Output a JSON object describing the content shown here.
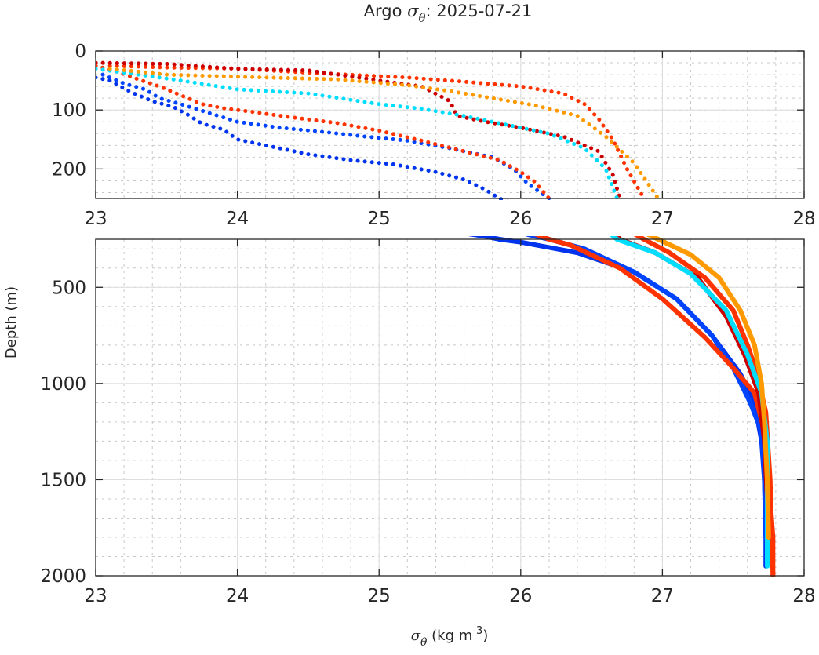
{
  "chart_data": {
    "type": "scatter",
    "title_prefix": "Argo ",
    "title_symbol": "σ",
    "title_subscript": "θ",
    "title_suffix": ": 2025-07-21",
    "xlabel_symbol": "σ",
    "xlabel_subscript": "θ",
    "xlabel_text": " (kg m",
    "xlabel_sup": "-3",
    "xlabel_close": ")",
    "ylabel": "Depth (m)",
    "xlim": [
      23,
      28
    ],
    "grid": true,
    "panels": [
      {
        "name": "upper",
        "ylim": [
          0,
          250
        ],
        "yticks": [
          "0",
          "100",
          "200"
        ],
        "ytick_values": [
          0,
          100,
          200
        ],
        "xticks": [
          "23",
          "24",
          "25",
          "26",
          "27",
          "28"
        ],
        "xtick_values": [
          23,
          24,
          25,
          26,
          27,
          28
        ]
      },
      {
        "name": "lower",
        "ylim": [
          250,
          2000
        ],
        "yticks": [
          "500",
          "1000",
          "1500",
          "2000"
        ],
        "ytick_values": [
          500,
          1000,
          1500,
          2000
        ],
        "xticks": [
          "23",
          "24",
          "25",
          "26",
          "27",
          "28"
        ],
        "xtick_values": [
          23,
          24,
          25,
          26,
          27,
          28
        ]
      }
    ],
    "series": [
      {
        "name": "profile-blue-1",
        "color": "#0033ee",
        "points": [
          [
            23.0,
            45
          ],
          [
            23.1,
            50
          ],
          [
            23.25,
            70
          ],
          [
            23.4,
            85
          ],
          [
            23.55,
            95
          ],
          [
            23.65,
            108
          ],
          [
            23.75,
            123
          ],
          [
            23.9,
            133
          ],
          [
            24.0,
            150
          ],
          [
            24.2,
            160
          ],
          [
            24.5,
            175
          ],
          [
            24.8,
            185
          ],
          [
            25.1,
            192
          ],
          [
            25.4,
            205
          ],
          [
            25.6,
            218
          ],
          [
            25.75,
            235
          ],
          [
            25.85,
            250
          ],
          [
            26.0,
            265
          ],
          [
            26.4,
            320
          ],
          [
            26.8,
            420
          ],
          [
            27.1,
            560
          ],
          [
            27.35,
            750
          ],
          [
            27.55,
            950
          ],
          [
            27.65,
            1100
          ],
          [
            27.7,
            1300
          ],
          [
            27.72,
            1500
          ],
          [
            27.73,
            1800
          ],
          [
            27.73,
            1950
          ]
        ]
      },
      {
        "name": "profile-blue-2",
        "color": "#0044ff",
        "points": [
          [
            23.05,
            40
          ],
          [
            23.2,
            55
          ],
          [
            23.35,
            65
          ],
          [
            23.45,
            80
          ],
          [
            23.6,
            90
          ],
          [
            23.8,
            105
          ],
          [
            24.0,
            120
          ],
          [
            24.3,
            130
          ],
          [
            24.6,
            137
          ],
          [
            24.9,
            145
          ],
          [
            25.2,
            152
          ],
          [
            25.5,
            165
          ],
          [
            25.8,
            180
          ],
          [
            25.95,
            200
          ],
          [
            26.05,
            225
          ],
          [
            26.2,
            250
          ],
          [
            26.45,
            300
          ],
          [
            26.8,
            420
          ],
          [
            27.1,
            560
          ],
          [
            27.35,
            750
          ],
          [
            27.5,
            920
          ],
          [
            27.62,
            1100
          ],
          [
            27.7,
            1250
          ],
          [
            27.72,
            1500
          ],
          [
            27.73,
            1800
          ]
        ]
      },
      {
        "name": "profile-red-orange-1",
        "color": "#ff3300",
        "points": [
          [
            23.0,
            25
          ],
          [
            23.15,
            35
          ],
          [
            23.3,
            48
          ],
          [
            23.45,
            60
          ],
          [
            23.6,
            75
          ],
          [
            23.75,
            90
          ],
          [
            23.9,
            97
          ],
          [
            24.1,
            103
          ],
          [
            24.4,
            113
          ],
          [
            24.7,
            122
          ],
          [
            25.0,
            135
          ],
          [
            25.3,
            152
          ],
          [
            25.6,
            170
          ],
          [
            25.85,
            185
          ],
          [
            26.0,
            205
          ],
          [
            26.1,
            222
          ],
          [
            26.2,
            250
          ],
          [
            26.35,
            280
          ],
          [
            26.7,
            400
          ],
          [
            27.0,
            560
          ],
          [
            27.3,
            760
          ],
          [
            27.5,
            920
          ],
          [
            27.65,
            1050
          ],
          [
            27.72,
            1250
          ],
          [
            27.75,
            1500
          ],
          [
            27.78,
            1800
          ],
          [
            27.78,
            2000
          ]
        ]
      },
      {
        "name": "profile-red-orange-2",
        "color": "#ff3300",
        "points": [
          [
            23.1,
            25
          ],
          [
            23.5,
            28
          ],
          [
            24.0,
            30
          ],
          [
            24.6,
            38
          ],
          [
            25.2,
            45
          ],
          [
            25.6,
            52
          ],
          [
            26.0,
            60
          ],
          [
            26.3,
            72
          ],
          [
            26.45,
            90
          ],
          [
            26.55,
            115
          ],
          [
            26.65,
            150
          ],
          [
            26.75,
            200
          ],
          [
            26.87,
            250
          ],
          [
            27.05,
            320
          ],
          [
            27.3,
            450
          ],
          [
            27.5,
            620
          ],
          [
            27.6,
            800
          ],
          [
            27.67,
            950
          ],
          [
            27.73,
            1150
          ],
          [
            27.76,
            1500
          ],
          [
            27.78,
            2000
          ]
        ]
      },
      {
        "name": "profile-dark-red",
        "color": "#cc0000",
        "points": [
          [
            23.0,
            20
          ],
          [
            23.5,
            22
          ],
          [
            24.0,
            30
          ],
          [
            24.5,
            33
          ],
          [
            25.0,
            50
          ],
          [
            25.3,
            60
          ],
          [
            25.5,
            85
          ],
          [
            25.55,
            110
          ],
          [
            25.75,
            120
          ],
          [
            26.0,
            130
          ],
          [
            26.3,
            145
          ],
          [
            26.55,
            170
          ],
          [
            26.65,
            210
          ],
          [
            26.7,
            250
          ],
          [
            26.95,
            320
          ],
          [
            27.25,
            450
          ],
          [
            27.45,
            650
          ],
          [
            27.58,
            850
          ],
          [
            27.68,
            1050
          ],
          [
            27.72,
            1300
          ],
          [
            27.74,
            1600
          ]
        ]
      },
      {
        "name": "profile-cyan",
        "color": "#00ddff",
        "points": [
          [
            23.0,
            30
          ],
          [
            23.3,
            40
          ],
          [
            23.6,
            50
          ],
          [
            24.0,
            65
          ],
          [
            24.5,
            72
          ],
          [
            25.0,
            90
          ],
          [
            25.3,
            98
          ],
          [
            25.6,
            110
          ],
          [
            25.9,
            125
          ],
          [
            26.2,
            140
          ],
          [
            26.45,
            165
          ],
          [
            26.6,
            200
          ],
          [
            26.68,
            250
          ],
          [
            26.95,
            320
          ],
          [
            27.2,
            430
          ],
          [
            27.45,
            620
          ],
          [
            27.6,
            850
          ],
          [
            27.7,
            1050
          ],
          [
            27.74,
            1300
          ],
          [
            27.74,
            1600
          ],
          [
            27.74,
            1950
          ]
        ]
      },
      {
        "name": "profile-orange",
        "color": "#ff9900",
        "points": [
          [
            23.1,
            30
          ],
          [
            23.5,
            40
          ],
          [
            24.2,
            45
          ],
          [
            24.7,
            48
          ],
          [
            25.2,
            58
          ],
          [
            25.5,
            68
          ],
          [
            25.8,
            80
          ],
          [
            26.1,
            92
          ],
          [
            26.4,
            110
          ],
          [
            26.6,
            145
          ],
          [
            26.8,
            190
          ],
          [
            26.97,
            250
          ],
          [
            27.2,
            330
          ],
          [
            27.4,
            450
          ],
          [
            27.55,
            620
          ],
          [
            27.65,
            800
          ],
          [
            27.7,
            1000
          ],
          [
            27.72,
            1200
          ],
          [
            27.74,
            1500
          ],
          [
            27.75,
            1800
          ]
        ]
      }
    ]
  }
}
